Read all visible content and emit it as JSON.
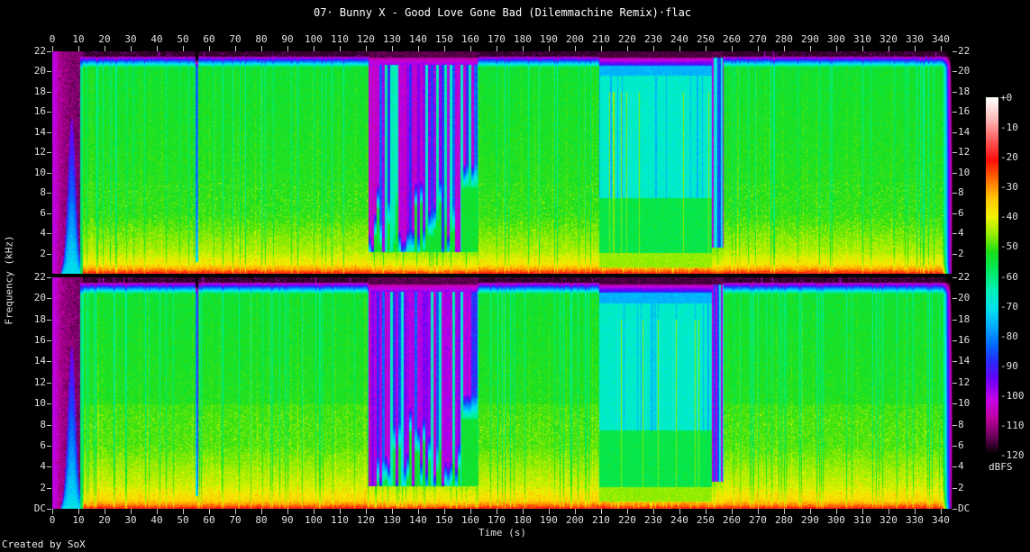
{
  "title": "07· Bunny X - Good Love Gone Bad (Dilemmachine Remix)·flac",
  "credit": "Created by SoX",
  "colors": {
    "background": "#000000",
    "text": "#e0e0e0",
    "tick": "#c9c9c9"
  },
  "axes": {
    "time": {
      "label": "Time (s)",
      "ticks": [
        0,
        10,
        20,
        30,
        40,
        50,
        60,
        70,
        80,
        90,
        100,
        110,
        120,
        130,
        140,
        150,
        160,
        170,
        180,
        190,
        200,
        210,
        220,
        230,
        240,
        250,
        260,
        270,
        280,
        290,
        300,
        310,
        320,
        330,
        340
      ]
    },
    "frequency": {
      "label": "Frequency (kHz)",
      "ticks_khz": [
        22,
        20,
        18,
        16,
        14,
        12,
        10,
        8,
        6,
        4,
        2
      ],
      "dc_label": "DC"
    }
  },
  "legend": {
    "unit_label": "dBFS",
    "position": "right",
    "ticks": [
      "+0",
      "-10",
      "-20",
      "-30",
      "-40",
      "-50",
      "-60",
      "-70",
      "-80",
      "-90",
      "-100",
      "-110",
      "-120"
    ]
  },
  "chart_data": {
    "type": "heatmap",
    "subtype": "audio-spectrogram",
    "title": "07· Bunny X - Good Love Gone Bad (Dilemmachine Remix)·flac",
    "xlabel": "Time (s)",
    "ylabel": "Frequency (kHz)",
    "zlabel": "dBFS",
    "grid": false,
    "x_range_s": [
      0,
      344.5
    ],
    "y_range_khz": [
      0,
      22
    ],
    "z_range_dbfs": [
      -120,
      0
    ],
    "channels": [
      "left",
      "right"
    ],
    "lowpass_cutoff_khz": 21.3,
    "palette_stops_dbfs_rgb": [
      [
        0,
        255,
        255,
        255
      ],
      [
        -7,
        255,
        190,
        190
      ],
      [
        -14,
        255,
        95,
        95
      ],
      [
        -21,
        255,
        12,
        12
      ],
      [
        -28,
        255,
        118,
        0
      ],
      [
        -34,
        255,
        200,
        0
      ],
      [
        -40,
        242,
        242,
        0
      ],
      [
        -46,
        150,
        238,
        0
      ],
      [
        -52,
        25,
        222,
        25
      ],
      [
        -58,
        0,
        235,
        95
      ],
      [
        -65,
        0,
        240,
        185
      ],
      [
        -71,
        0,
        226,
        238
      ],
      [
        -77,
        0,
        172,
        255
      ],
      [
        -83,
        0,
        108,
        255
      ],
      [
        -89,
        42,
        42,
        252
      ],
      [
        -95,
        110,
        0,
        248
      ],
      [
        -102,
        202,
        0,
        228
      ],
      [
        -108,
        188,
        0,
        158
      ],
      [
        -114,
        108,
        0,
        92
      ],
      [
        -120,
        0,
        0,
        0
      ]
    ],
    "body_profile_dbfs": [
      {
        "khz": 0.0,
        "db": -17
      },
      {
        "khz": 0.12,
        "db": -23
      },
      {
        "khz": 0.45,
        "db": -31
      },
      {
        "khz": 0.95,
        "db": -38.5
      },
      {
        "khz": 2.2,
        "db": -44.5
      },
      {
        "khz": 6.0,
        "db": -51.5
      },
      {
        "khz": 20.45,
        "db": -54
      },
      {
        "khz": 21.55,
        "db": -107
      },
      {
        "khz": 22.0,
        "db": -117
      }
    ],
    "segments": [
      {
        "name": "noise-burst",
        "t0": 0,
        "t1": 1.6,
        "description": "full-height bright magenta column at track start"
      },
      {
        "name": "quiet-intro",
        "t0": 1.6,
        "t1": 10.6,
        "description": "near-silence: faint magenta noise wash with a cyan low-frequency sweep rising to about 15 kHz"
      },
      {
        "name": "onset-hit",
        "t0": 10.6,
        "t1": 11.7,
        "description": "bright full-band attack column"
      },
      {
        "name": "verse",
        "t0": 11.7,
        "t1": 120.8,
        "gap_at_s": 55.2,
        "description": "full-band music: green body near -52 dBFS, yellow low-mids, orange/red bass, sharp lowpass cutoff near 21.3 kHz; short dropout at 55 s"
      },
      {
        "name": "breakdown-magenta",
        "t0": 120.8,
        "t1": 162.5,
        "description": "quiet breakdown: magenta/blue vertical streaks hanging from the cutoff down to 3-10 kHz over cyan, yellow bass kept"
      },
      {
        "name": "verse",
        "t0": 162.5,
        "t1": 209.3,
        "description": "full-band music resumes"
      },
      {
        "name": "breakdown-cyan",
        "t0": 209.3,
        "t1": 252.2,
        "description": "softer section: cyan wash 8-21 kHz with thin yellow transient lines, green lows, yellow bass"
      },
      {
        "name": "transition",
        "t0": 252.2,
        "t1": 256.8,
        "description": "dark blue/magenta streak columns before final chorus"
      },
      {
        "name": "verse",
        "t0": 256.8,
        "t1": 340.3,
        "description": "full-band music to the end"
      },
      {
        "name": "fade-out",
        "t0": 340.3,
        "t1": 344.5,
        "description": "level collapses through green, cyan, blue, magenta to black at the track end"
      }
    ]
  }
}
